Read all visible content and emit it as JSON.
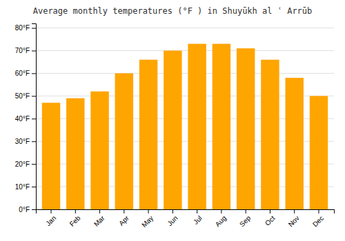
{
  "chart_data": {
    "type": "bar",
    "title": "Average monthly temperatures (°F ) in Shuyūkh al ʿ Arrūb",
    "categories": [
      "Jan",
      "Feb",
      "Mar",
      "Apr",
      "May",
      "Jun",
      "Jul",
      "Aug",
      "Sep",
      "Oct",
      "Nov",
      "Dec"
    ],
    "values": [
      47,
      49,
      52,
      60,
      66,
      70,
      73,
      73,
      71,
      66,
      58,
      50
    ],
    "color": "#FFA500",
    "ylim": [
      0,
      82
    ],
    "yticks": [
      {
        "value": 0,
        "label": "0°F"
      },
      {
        "value": 10,
        "label": "10°F"
      },
      {
        "value": 20,
        "label": "20°F"
      },
      {
        "value": 30,
        "label": "30°F"
      },
      {
        "value": 40,
        "label": "40°F"
      },
      {
        "value": 50,
        "label": "50°F"
      },
      {
        "value": 60,
        "label": "60°F"
      },
      {
        "value": 70,
        "label": "70°F"
      },
      {
        "value": 80,
        "label": "80°F"
      }
    ],
    "grid": true
  }
}
